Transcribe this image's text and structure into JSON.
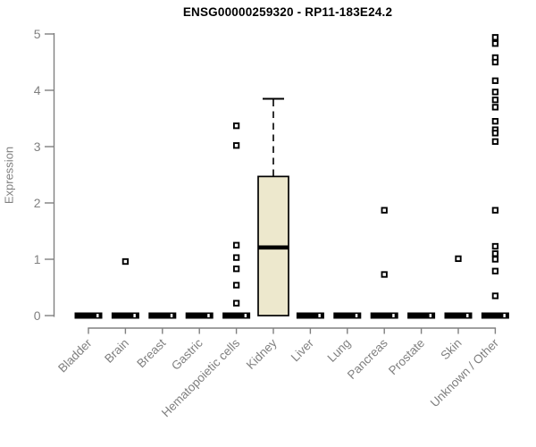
{
  "chart_data": {
    "type": "boxplot",
    "title": "ENSG00000259320 - RP11-183E24.2",
    "ylabel": "Expression",
    "ylim": [
      0,
      5
    ],
    "yticks": [
      0,
      1,
      2,
      3,
      4,
      5
    ],
    "grid": false,
    "legend": "none",
    "categories": [
      "Bladder",
      "Brain",
      "Breast",
      "Gastric",
      "Hematopoietic cells",
      "Kidney",
      "Liver",
      "Lung",
      "Pancreas",
      "Prostate",
      "Skin",
      "Unknown / Other"
    ],
    "boxes": [
      {
        "category": "Bladder",
        "min": 0,
        "q1": 0,
        "median": 0,
        "q3": 0,
        "max": 0,
        "outliers": []
      },
      {
        "category": "Brain",
        "min": 0,
        "q1": 0,
        "median": 0,
        "q3": 0,
        "max": 0,
        "outliers": [
          0.96
        ]
      },
      {
        "category": "Breast",
        "min": 0,
        "q1": 0,
        "median": 0,
        "q3": 0,
        "max": 0,
        "outliers": []
      },
      {
        "category": "Gastric",
        "min": 0,
        "q1": 0,
        "median": 0,
        "q3": 0,
        "max": 0,
        "outliers": []
      },
      {
        "category": "Hematopoietic cells",
        "min": 0,
        "q1": 0,
        "median": 0,
        "q3": 0,
        "max": 0,
        "outliers": [
          3.37,
          3.02,
          1.25,
          1.03,
          0.83,
          0.54,
          0.22
        ]
      },
      {
        "category": "Kidney",
        "min": 0,
        "q1": 0,
        "median": 1.21,
        "q3": 2.47,
        "max": 3.85,
        "outliers": []
      },
      {
        "category": "Liver",
        "min": 0,
        "q1": 0,
        "median": 0,
        "q3": 0,
        "max": 0,
        "outliers": []
      },
      {
        "category": "Lung",
        "min": 0,
        "q1": 0,
        "median": 0,
        "q3": 0,
        "max": 0,
        "outliers": []
      },
      {
        "category": "Pancreas",
        "min": 0,
        "q1": 0,
        "median": 0,
        "q3": 0,
        "max": 0,
        "outliers": [
          1.87,
          0.73
        ]
      },
      {
        "category": "Prostate",
        "min": 0,
        "q1": 0,
        "median": 0,
        "q3": 0,
        "max": 0,
        "outliers": []
      },
      {
        "category": "Skin",
        "min": 0,
        "q1": 0,
        "median": 0,
        "q3": 0,
        "max": 0,
        "outliers": [
          1.01
        ]
      },
      {
        "category": "Unknown / Other",
        "min": 0,
        "q1": 0,
        "median": 0,
        "q3": 0,
        "max": 0,
        "outliers": [
          4.94,
          4.83,
          4.58,
          4.5,
          4.17,
          3.97,
          3.83,
          3.7,
          3.45,
          3.3,
          3.24,
          3.09,
          1.87,
          1.23,
          1.1,
          1.0,
          0.79,
          0.35
        ]
      }
    ],
    "colors": {
      "box_fill": "#EDE8CD",
      "box_stroke": "#000000",
      "median": "#000000",
      "whisker": "#000000",
      "outlier_stroke": "#000000",
      "outlier_fill": "#FFFFFF",
      "axis": "#808080",
      "tick_text": "#808080",
      "title_text": "#000000",
      "background": "#FFFFFF"
    }
  }
}
